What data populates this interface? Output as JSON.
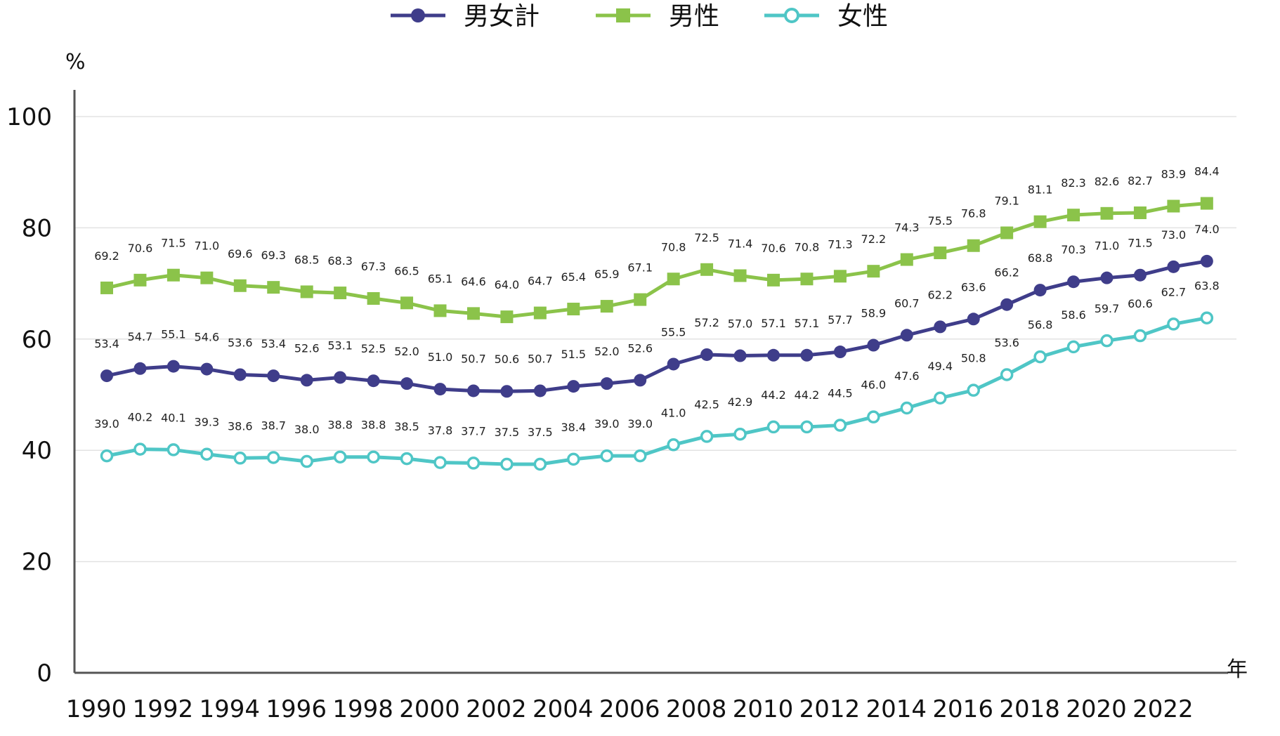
{
  "chart_data": {
    "type": "line",
    "y_unit": "%",
    "x_unit": "年",
    "ylim": [
      0,
      100
    ],
    "yticks": [
      0,
      20,
      40,
      60,
      80,
      100
    ],
    "xticks": [
      1990,
      1992,
      1994,
      1996,
      1998,
      2000,
      2002,
      2004,
      2006,
      2008,
      2010,
      2012,
      2014,
      2016,
      2018,
      2020,
      2022
    ],
    "x": [
      1990,
      1991,
      1992,
      1993,
      1994,
      1995,
      1996,
      1997,
      1998,
      1999,
      2000,
      2001,
      2002,
      2003,
      2004,
      2005,
      2006,
      2007,
      2008,
      2009,
      2010,
      2011,
      2012,
      2013,
      2014,
      2015,
      2016,
      2017,
      2018,
      2019,
      2020,
      2021,
      2022,
      2023
    ],
    "grid": "horizontal",
    "legend_position": "top-center",
    "series": [
      {
        "name": "男女計",
        "color": "#3f3d8a",
        "marker": "circle-filled",
        "values": [
          53.4,
          54.7,
          55.1,
          54.6,
          53.6,
          53.4,
          52.6,
          53.1,
          52.5,
          52.0,
          51.0,
          50.7,
          50.6,
          50.7,
          51.5,
          52.0,
          52.6,
          55.5,
          57.2,
          57.0,
          57.1,
          57.1,
          57.7,
          58.9,
          60.7,
          62.2,
          63.6,
          66.2,
          68.8,
          70.3,
          71.0,
          71.5,
          73.0,
          74.0
        ]
      },
      {
        "name": "男性",
        "color": "#8bc34a",
        "marker": "square-filled",
        "values": [
          69.2,
          70.6,
          71.5,
          71.0,
          69.6,
          69.3,
          68.5,
          68.3,
          67.3,
          66.5,
          65.1,
          64.6,
          64.0,
          64.7,
          65.4,
          65.9,
          67.1,
          70.8,
          72.5,
          71.4,
          70.6,
          70.8,
          71.3,
          72.2,
          74.3,
          75.5,
          76.8,
          79.1,
          81.1,
          82.3,
          82.6,
          82.7,
          83.9,
          84.4
        ]
      },
      {
        "name": "女性",
        "color": "#4fc6c6",
        "marker": "circle-open",
        "values": [
          39.0,
          40.2,
          40.1,
          39.3,
          38.6,
          38.7,
          38.0,
          38.8,
          38.8,
          38.5,
          37.8,
          37.7,
          37.5,
          37.5,
          38.4,
          39.0,
          39.0,
          41.0,
          42.5,
          42.9,
          44.2,
          44.2,
          44.5,
          46.0,
          47.6,
          49.4,
          50.8,
          53.6,
          56.8,
          58.6,
          59.7,
          60.6,
          62.7,
          63.8
        ]
      }
    ]
  }
}
